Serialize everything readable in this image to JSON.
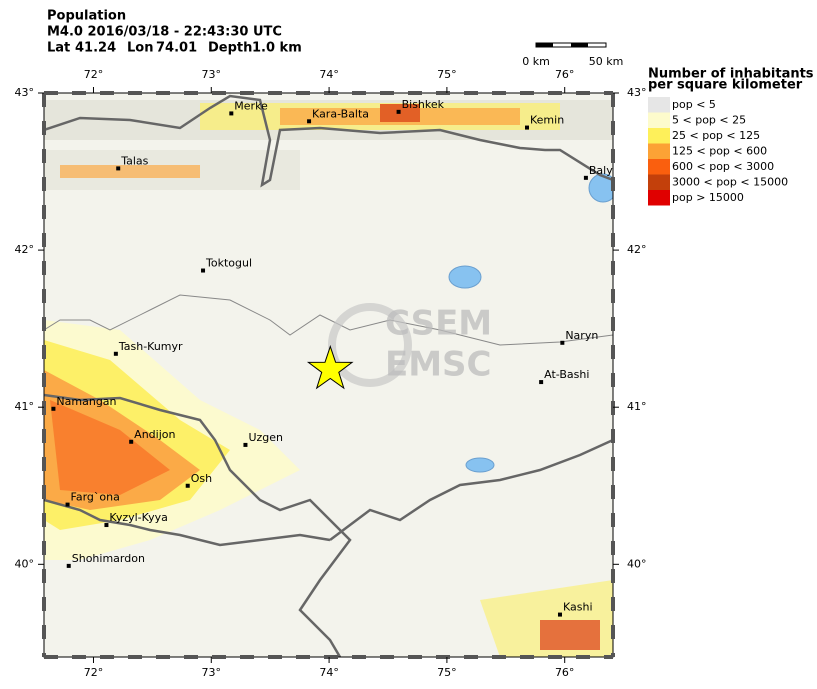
{
  "header": {
    "title": "Population",
    "event": "M4.0  2016/03/18 - 22:43:30 UTC",
    "epicenter": {
      "lat_label": "Lat",
      "lat": 41.24,
      "lon_label": "Lon",
      "lon": 74.01,
      "depth_label": "Depth",
      "depth": "1.0 km"
    }
  },
  "map": {
    "lon_range": [
      71.58,
      76.41
    ],
    "lat_range": [
      39.41,
      43
    ],
    "lon_ticks": [
      {
        "value": 72,
        "label": "72°"
      },
      {
        "value": 73,
        "label": "73°"
      },
      {
        "value": 74,
        "label": "74°"
      },
      {
        "value": 75,
        "label": "75°"
      },
      {
        "value": 76,
        "label": "76°"
      }
    ],
    "lat_ticks": [
      {
        "value": 43,
        "label": "43°"
      },
      {
        "value": 42,
        "label": "42°"
      },
      {
        "value": 41,
        "label": "41°"
      },
      {
        "value": 40,
        "label": "40°"
      }
    ],
    "cities": [
      {
        "name": "Merke",
        "lon": 73.17,
        "lat": 42.87
      },
      {
        "name": "Kara-Balta",
        "lon": 73.83,
        "lat": 42.82
      },
      {
        "name": "Bishkek",
        "lon": 74.59,
        "lat": 42.88
      },
      {
        "name": "Kemin",
        "lon": 75.68,
        "lat": 42.78
      },
      {
        "name": "Baly",
        "lon": 76.18,
        "lat": 42.46
      },
      {
        "name": "Talas",
        "lon": 72.21,
        "lat": 42.52
      },
      {
        "name": "Toktogul",
        "lon": 72.93,
        "lat": 41.87
      },
      {
        "name": "Naryn",
        "lon": 75.98,
        "lat": 41.41
      },
      {
        "name": "Tash-Kumyr",
        "lon": 72.19,
        "lat": 41.34
      },
      {
        "name": "At-Bashi",
        "lon": 75.8,
        "lat": 41.16
      },
      {
        "name": "Namangan",
        "lon": 71.66,
        "lat": 40.99
      },
      {
        "name": "Andijon",
        "lon": 72.32,
        "lat": 40.78
      },
      {
        "name": "Uzgen",
        "lon": 73.29,
        "lat": 40.76
      },
      {
        "name": "Osh",
        "lon": 72.8,
        "lat": 40.5
      },
      {
        "name": "Farg`ona",
        "lon": 71.78,
        "lat": 40.38
      },
      {
        "name": "Kyzyl-Kyya",
        "lon": 72.11,
        "lat": 40.25
      },
      {
        "name": "Shohimardon",
        "lon": 71.79,
        "lat": 39.99
      },
      {
        "name": "Kashi",
        "lon": 75.96,
        "lat": 39.68
      }
    ],
    "watermark": [
      "CSEM",
      "EMSC"
    ],
    "scale_bar": [
      "0 km",
      "50 km"
    ]
  },
  "legend": {
    "title": [
      "Number of inhabitants",
      "per square kilometer"
    ],
    "entries": [
      {
        "label": "pop < 5",
        "color": "#e6e6e6"
      },
      {
        "label": "5 < pop < 25",
        "color": "#fdfbcc"
      },
      {
        "label": "25 < pop < 125",
        "color": "#fef05a"
      },
      {
        "label": "125 < pop < 600",
        "color": "#fca235"
      },
      {
        "label": "600 < pop < 3000",
        "color": "#fa5f0e"
      },
      {
        "label": "3000 < pop < 15000",
        "color": "#c3400b"
      },
      {
        "label": "pop > 15000",
        "color": "#e00000"
      }
    ]
  }
}
